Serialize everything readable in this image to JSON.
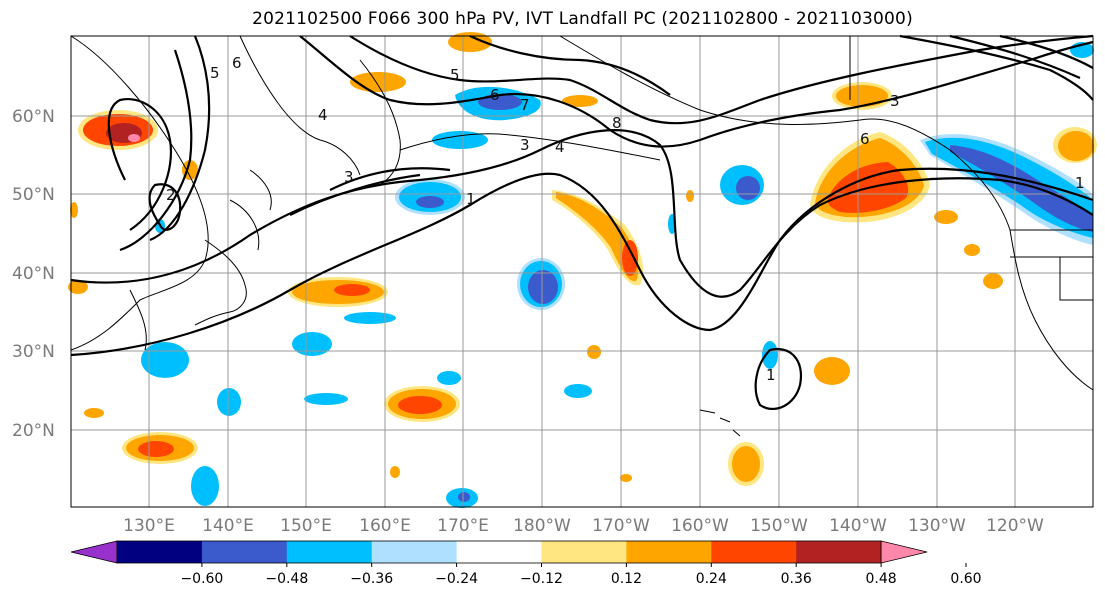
{
  "title": "2021102500 F066 300 hPa PV, IVT Landfall PC (2021102800 - 2021103000)",
  "map": {
    "lat_ticks": [
      "60°N",
      "50°N",
      "40°N",
      "30°N",
      "20°N"
    ],
    "lon_ticks": [
      "130°E",
      "140°E",
      "150°E",
      "160°E",
      "170°E",
      "180°W",
      "170°W",
      "160°W",
      "150°W",
      "140°W",
      "130°W",
      "120°W"
    ],
    "contour_labels": [
      "6",
      "5",
      "4",
      "3",
      "2",
      "1",
      "7",
      "8",
      "3",
      "4",
      "6",
      "1",
      "5",
      "6",
      "3",
      "1"
    ],
    "colors": {
      "land_outline": "#000000",
      "grid": "#999999",
      "contour": "#000000",
      "positive_anomaly": [
        "#ffe680",
        "#ffa500",
        "#ff4500",
        "#b22222",
        "#ff88aa"
      ],
      "negative_anomaly": [
        "#b0e0ff",
        "#00bfff",
        "#3b5bcc",
        "#000080",
        "#9932cc"
      ]
    }
  },
  "colorbar": {
    "ticks": [
      "−0.60",
      "−0.48",
      "−0.36",
      "−0.24",
      "−0.12",
      "0.12",
      "0.24",
      "0.36",
      "0.48",
      "0.60"
    ],
    "colors": [
      "#9932cc",
      "#000080",
      "#3b5bcc",
      "#00bfff",
      "#b0e0ff",
      "#ffffff",
      "#ffe680",
      "#ffa500",
      "#ff4500",
      "#b22222",
      "#ff88aa"
    ]
  }
}
